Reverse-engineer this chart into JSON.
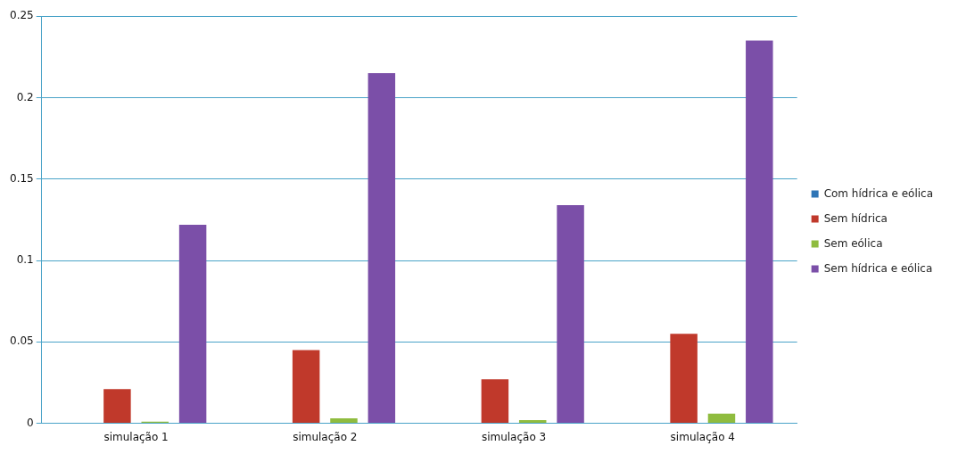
{
  "chart_data": {
    "type": "bar",
    "categories": [
      "simulação 1",
      "simulação 2",
      "simulação 3",
      "simulação 4"
    ],
    "series": [
      {
        "name": "Com hídrica e eólica",
        "color": "#2e75b6",
        "values": [
          0,
          0,
          0,
          0
        ]
      },
      {
        "name": "Sem hídrica",
        "color": "#c0392b",
        "values": [
          0.021,
          0.045,
          0.027,
          0.055
        ]
      },
      {
        "name": "Sem eólica",
        "color": "#8fbc3f",
        "values": [
          0.001,
          0.003,
          0.002,
          0.006
        ]
      },
      {
        "name": "Sem hídrica e eólica",
        "color": "#7b4fa8",
        "values": [
          0.122,
          0.215,
          0.134,
          0.235
        ]
      }
    ],
    "ylim": [
      0,
      0.25
    ],
    "yticks": [
      0,
      0.05,
      0.1,
      0.15,
      0.2,
      0.25
    ],
    "grid": "y",
    "legend": "right"
  }
}
